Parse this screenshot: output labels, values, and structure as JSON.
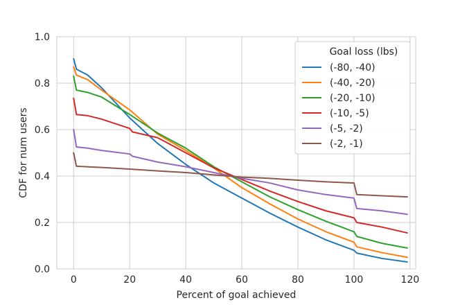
{
  "chart_data": {
    "type": "line",
    "title": "",
    "xlabel": "Percent of goal achieved",
    "ylabel": "CDF for num users",
    "xlim": [
      -6,
      122
    ],
    "ylim": [
      0.0,
      1.0
    ],
    "xticks": [
      0,
      20,
      40,
      60,
      80,
      100,
      120
    ],
    "yticks": [
      0.0,
      0.2,
      0.4,
      0.6,
      0.8,
      1.0
    ],
    "xtick_labels": [
      "0",
      "20",
      "40",
      "60",
      "80",
      "100",
      "120"
    ],
    "ytick_labels": [
      "0.0",
      "0.2",
      "0.4",
      "0.6",
      "0.8",
      "1.0"
    ],
    "grid": true,
    "legend": {
      "title": "Goal loss (lbs)",
      "position": "top-right"
    },
    "series": [
      {
        "name": "(-80, -40)",
        "color": "#1f77b4",
        "x": [
          0,
          1,
          5,
          10,
          20,
          30,
          40,
          50,
          60,
          70,
          80,
          90,
          100,
          101,
          110,
          119
        ],
        "y": [
          0.905,
          0.86,
          0.835,
          0.78,
          0.65,
          0.54,
          0.45,
          0.37,
          0.305,
          0.24,
          0.18,
          0.125,
          0.08,
          0.068,
          0.045,
          0.03
        ]
      },
      {
        "name": "(-40, -20)",
        "color": "#ff7f0e",
        "x": [
          0,
          1,
          5,
          10,
          20,
          30,
          40,
          50,
          60,
          70,
          80,
          90,
          100,
          101,
          110,
          119
        ],
        "y": [
          0.87,
          0.835,
          0.815,
          0.77,
          0.685,
          0.58,
          0.51,
          0.435,
          0.35,
          0.28,
          0.215,
          0.16,
          0.115,
          0.095,
          0.07,
          0.05
        ]
      },
      {
        "name": "(-20, -10)",
        "color": "#2ca02c",
        "x": [
          0,
          1,
          5,
          10,
          20,
          30,
          40,
          50,
          60,
          70,
          80,
          90,
          100,
          101,
          110,
          119
        ],
        "y": [
          0.83,
          0.77,
          0.76,
          0.74,
          0.665,
          0.585,
          0.52,
          0.44,
          0.375,
          0.31,
          0.255,
          0.205,
          0.16,
          0.14,
          0.11,
          0.09
        ]
      },
      {
        "name": "(-10, -5)",
        "color": "#d62728",
        "x": [
          0,
          1,
          5,
          10,
          20,
          21,
          30,
          40,
          50,
          60,
          70,
          80,
          90,
          100,
          101,
          110,
          119
        ],
        "y": [
          0.735,
          0.665,
          0.66,
          0.645,
          0.605,
          0.59,
          0.565,
          0.5,
          0.435,
          0.385,
          0.335,
          0.29,
          0.25,
          0.22,
          0.2,
          0.18,
          0.155
        ]
      },
      {
        "name": "(-5, -2)",
        "color": "#9467bd",
        "x": [
          0,
          1,
          5,
          10,
          20,
          21,
          30,
          40,
          50,
          60,
          70,
          80,
          90,
          100,
          101,
          110,
          119
        ],
        "y": [
          0.6,
          0.525,
          0.52,
          0.51,
          0.495,
          0.485,
          0.46,
          0.44,
          0.415,
          0.39,
          0.37,
          0.34,
          0.32,
          0.305,
          0.26,
          0.25,
          0.235
        ]
      },
      {
        "name": "(-2, -1)",
        "color": "#8c564b",
        "x": [
          0,
          1,
          10,
          20,
          30,
          40,
          50,
          60,
          70,
          80,
          90,
          100,
          101,
          110,
          119
        ],
        "y": [
          0.5,
          0.442,
          0.437,
          0.43,
          0.422,
          0.415,
          0.405,
          0.395,
          0.39,
          0.382,
          0.375,
          0.37,
          0.32,
          0.315,
          0.31
        ]
      }
    ]
  }
}
